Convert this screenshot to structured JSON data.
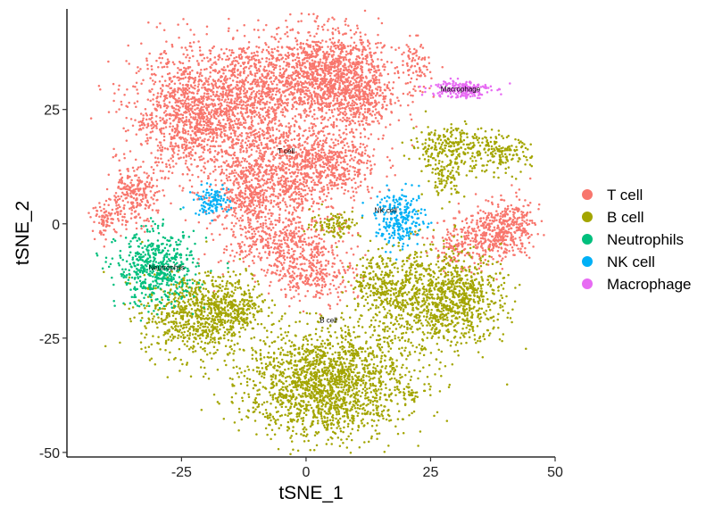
{
  "chart_data": {
    "type": "scatter",
    "title": "",
    "xlabel": "tSNE_1",
    "ylabel": "tSNE_2",
    "xlim": [
      -48,
      50
    ],
    "ylim": [
      -51,
      47
    ],
    "x_ticks": [
      -25,
      0,
      25,
      50
    ],
    "y_ticks": [
      -50,
      -25,
      0,
      25
    ],
    "grid": false,
    "legend_position": "right",
    "series": [
      {
        "name": "T cell",
        "color": "#F8766D"
      },
      {
        "name": "B cell",
        "color": "#A3A500"
      },
      {
        "name": "Neutrophils",
        "color": "#00BF7D"
      },
      {
        "name": "NK cell",
        "color": "#00B0F6"
      },
      {
        "name": "Macrophage",
        "color": "#E76BF3"
      }
    ],
    "clusters": [
      {
        "series": 0,
        "x": -22,
        "y": 24,
        "sx": 6.5,
        "sy": 7,
        "n": 1400
      },
      {
        "series": 0,
        "x": -10,
        "y": 28,
        "sx": 5,
        "sy": 6,
        "n": 600
      },
      {
        "series": 0,
        "x": 3,
        "y": 33,
        "sx": 6,
        "sy": 5,
        "n": 1100
      },
      {
        "series": 0,
        "x": 10,
        "y": 28,
        "sx": 4,
        "sy": 5,
        "n": 500
      },
      {
        "series": 0,
        "x": -5,
        "y": 12,
        "sx": 6,
        "sy": 5,
        "n": 700
      },
      {
        "series": 0,
        "x": 5,
        "y": 13,
        "sx": 5,
        "sy": 4,
        "n": 400
      },
      {
        "series": 0,
        "x": -12,
        "y": 6,
        "sx": 3,
        "sy": 3,
        "n": 250
      },
      {
        "series": 0,
        "x": -5,
        "y": -4,
        "sx": 6,
        "sy": 4,
        "n": 500
      },
      {
        "series": 0,
        "x": 2,
        "y": -11,
        "sx": 4,
        "sy": 3,
        "n": 250
      },
      {
        "series": 0,
        "x": -35,
        "y": 6,
        "sx": 2.5,
        "sy": 3,
        "n": 250
      },
      {
        "series": 0,
        "x": -40,
        "y": 1,
        "sx": 1.5,
        "sy": 1.8,
        "n": 80
      },
      {
        "series": 0,
        "x": 38,
        "y": -2,
        "sx": 3.5,
        "sy": 3,
        "n": 300
      },
      {
        "series": 0,
        "x": 31,
        "y": -5,
        "sx": 3,
        "sy": 3,
        "n": 150
      },
      {
        "series": 0,
        "x": 42,
        "y": 0,
        "sx": 2.5,
        "sy": 3,
        "n": 150
      },
      {
        "series": 0,
        "x": 22,
        "y": 34,
        "sx": 1.5,
        "sy": 3,
        "n": 90
      },
      {
        "series": 1,
        "x": 4,
        "y": -35,
        "sx": 8,
        "sy": 6,
        "n": 1800
      },
      {
        "series": 1,
        "x": -22,
        "y": -20,
        "sx": 5.5,
        "sy": 4.5,
        "n": 750
      },
      {
        "series": 1,
        "x": -14,
        "y": -17,
        "sx": 3,
        "sy": 3,
        "n": 200
      },
      {
        "series": 1,
        "x": 25,
        "y": -17,
        "sx": 6,
        "sy": 6,
        "n": 900
      },
      {
        "series": 1,
        "x": 33,
        "y": -16,
        "sx": 3.5,
        "sy": 4,
        "n": 250
      },
      {
        "series": 1,
        "x": 15,
        "y": -13,
        "sx": 3,
        "sy": 3,
        "n": 200
      },
      {
        "series": 1,
        "x": 29,
        "y": 17,
        "sx": 4,
        "sy": 2.5,
        "n": 250
      },
      {
        "series": 1,
        "x": 39,
        "y": 15,
        "sx": 3,
        "sy": 2,
        "n": 150
      },
      {
        "series": 1,
        "x": 28,
        "y": 10,
        "sx": 2,
        "sy": 2,
        "n": 80
      },
      {
        "series": 1,
        "x": 6,
        "y": 0,
        "sx": 2.5,
        "sy": 1.5,
        "n": 100
      },
      {
        "series": 1,
        "x": 21,
        "y": -37,
        "sx": 0.8,
        "sy": 0.8,
        "n": 20
      },
      {
        "series": 2,
        "x": -30,
        "y": -10,
        "sx": 4,
        "sy": 4,
        "n": 550
      },
      {
        "series": 3,
        "x": 19,
        "y": 1,
        "sx": 2.5,
        "sy": 3,
        "n": 250
      },
      {
        "series": 3,
        "x": -19,
        "y": 5,
        "sx": 1.8,
        "sy": 1.5,
        "n": 110
      },
      {
        "series": 4,
        "x": 31,
        "y": 29.5,
        "sx": 3,
        "sy": 1,
        "n": 200
      }
    ],
    "annotations": [
      {
        "text": "T cell",
        "x": -4,
        "y": 16
      },
      {
        "text": "Neutrophils",
        "x": -28,
        "y": -9.5
      },
      {
        "text": "NK cell",
        "x": 16,
        "y": 3
      },
      {
        "text": "Macrophage",
        "x": 31,
        "y": 29.5
      },
      {
        "text": "B cell",
        "x": 4.5,
        "y": -21
      }
    ]
  }
}
